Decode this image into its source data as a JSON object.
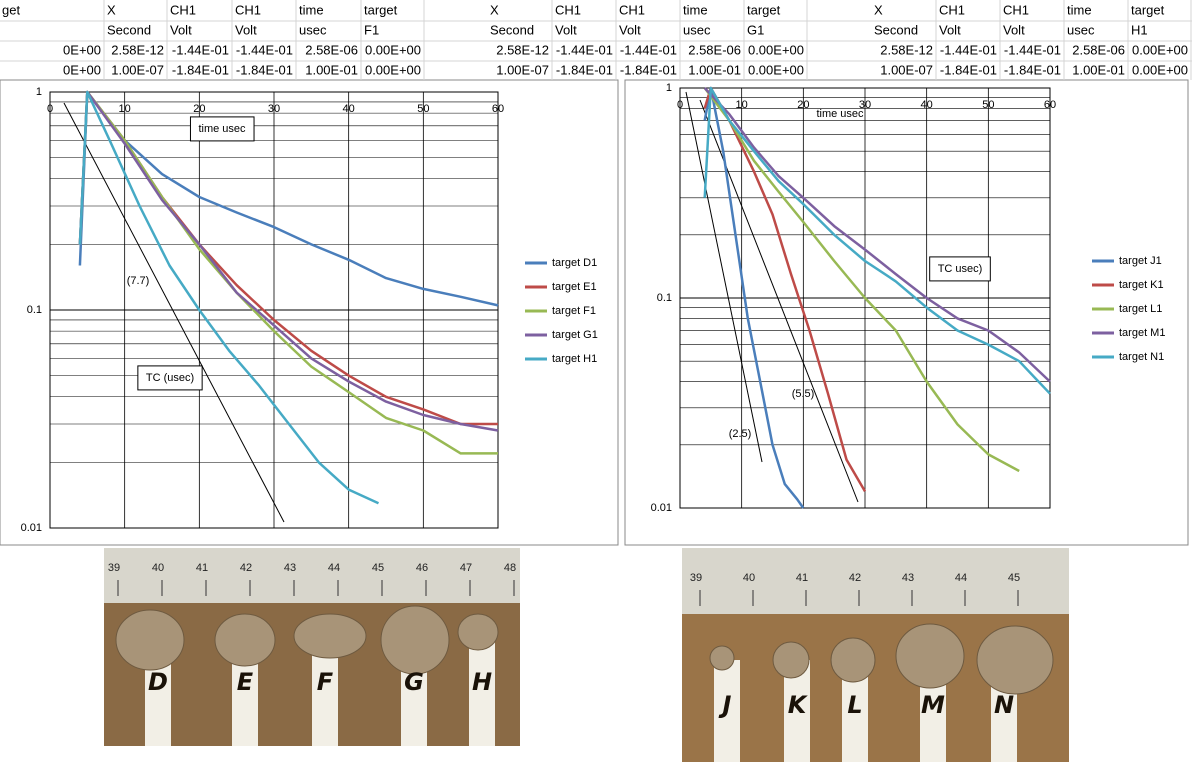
{
  "spreadsheet": {
    "rows": [
      [
        "get",
        "X",
        "CH1",
        "CH1",
        "time",
        "target",
        "X",
        "CH1",
        "CH1",
        "time",
        "target",
        "X",
        "CH1",
        "CH1",
        "time",
        "target"
      ],
      [
        null,
        "Second",
        "Volt",
        "Volt",
        "usec",
        "F1",
        "Second",
        "Volt",
        "Volt",
        "usec",
        "G1",
        "Second",
        "Volt",
        "Volt",
        "usec",
        "H1"
      ],
      [
        "0E+00",
        "2.58E-12",
        "-1.44E-01",
        "-1.44E-01",
        "2.58E-06",
        "0.00E+00",
        "2.58E-12",
        "-1.44E-01",
        "-1.44E-01",
        "2.58E-06",
        "0.00E+00",
        "2.58E-12",
        "-1.44E-01",
        "-1.44E-01",
        "2.58E-06",
        "0.00E+00"
      ],
      [
        "0E+00",
        "1.00E-07",
        "-1.84E-01",
        "-1.84E-01",
        "1.00E-01",
        "0.00E+00",
        "1.00E-07",
        "-1.84E-01",
        "-1.84E-01",
        "1.00E-01",
        "0.00E+00",
        "1.00E-07",
        "-1.84E-01",
        "-1.84E-01",
        "1.00E-01",
        "0.00E+00"
      ]
    ]
  },
  "chart_data": [
    {
      "type": "line",
      "log_y": true,
      "grid": true,
      "legend": "right",
      "annotations": [
        "time usec",
        "(7.7)",
        "TC (usec)"
      ],
      "xlim": [
        0,
        60
      ],
      "xticks": [
        0,
        10,
        20,
        30,
        40,
        50,
        60
      ],
      "ylim": [
        0.01,
        1
      ],
      "yticks": [
        0.01,
        0.1,
        1
      ],
      "y_minor_ticks": [
        0.02,
        0.03,
        0.04,
        0.05,
        0.06,
        0.07,
        0.08,
        0.09,
        0.2,
        0.3,
        0.4,
        0.5,
        0.6,
        0.7,
        0.8,
        0.9
      ],
      "series": [
        {
          "name": "target D1",
          "color": "#4a7ebb",
          "x": [
            4,
            5,
            10,
            15,
            20,
            25,
            30,
            35,
            40,
            45,
            50,
            55,
            60
          ],
          "values": [
            0.16,
            1,
            0.6,
            0.42,
            0.33,
            0.28,
            0.24,
            0.2,
            0.17,
            0.14,
            0.125,
            0.115,
            0.105
          ]
        },
        {
          "name": "target E1",
          "color": "#be4b48",
          "x": [
            4,
            5,
            10,
            15,
            20,
            25,
            30,
            35,
            40,
            45,
            50,
            55,
            60
          ],
          "values": [
            0.2,
            1,
            0.6,
            0.33,
            0.2,
            0.13,
            0.09,
            0.065,
            0.05,
            0.04,
            0.035,
            0.03,
            0.03
          ]
        },
        {
          "name": "target F1",
          "color": "#98b954",
          "x": [
            4,
            5,
            10,
            15,
            20,
            25,
            30,
            35,
            40,
            45,
            50,
            55,
            60
          ],
          "values": [
            0.2,
            1,
            0.6,
            0.33,
            0.19,
            0.12,
            0.08,
            0.055,
            0.042,
            0.032,
            0.028,
            0.022,
            0.022
          ]
        },
        {
          "name": "target G1",
          "color": "#7d60a0",
          "x": [
            4,
            5,
            10,
            15,
            20,
            25,
            30,
            35,
            40,
            45,
            50,
            55,
            60
          ],
          "values": [
            0.2,
            1,
            0.58,
            0.32,
            0.2,
            0.12,
            0.085,
            0.06,
            0.047,
            0.038,
            0.033,
            0.03,
            0.028
          ]
        },
        {
          "name": "target H1",
          "color": "#46aac5",
          "x": [
            4,
            5,
            8,
            12,
            16,
            20,
            24,
            28,
            32,
            36,
            40,
            44
          ],
          "values": [
            0.2,
            1,
            0.6,
            0.3,
            0.16,
            0.1,
            0.065,
            0.045,
            0.03,
            0.02,
            0.015,
            0.013
          ]
        }
      ]
    },
    {
      "type": "line",
      "log_y": true,
      "grid": true,
      "legend": "right",
      "annotations": [
        "time usec",
        "TC usec)",
        "(5.5)",
        "(2.5)"
      ],
      "xlim": [
        0,
        60
      ],
      "xticks": [
        0,
        10,
        20,
        30,
        40,
        50,
        60
      ],
      "ylim": [
        0.01,
        1
      ],
      "yticks": [
        0.01,
        0.1,
        1
      ],
      "y_minor_ticks": [
        0.02,
        0.03,
        0.04,
        0.05,
        0.06,
        0.07,
        0.08,
        0.09,
        0.2,
        0.3,
        0.4,
        0.5,
        0.6,
        0.7,
        0.8,
        0.9
      ],
      "series": [
        {
          "name": "target J1",
          "color": "#4a7ebb",
          "x": [
            4,
            5,
            7,
            9,
            11,
            13,
            15,
            17,
            19,
            20
          ],
          "values": [
            0.7,
            1,
            0.5,
            0.2,
            0.08,
            0.04,
            0.02,
            0.013,
            0.011,
            0.01
          ]
        },
        {
          "name": "target K1",
          "color": "#be4b48",
          "x": [
            4,
            5,
            8,
            12,
            15,
            18,
            21,
            24,
            27,
            30
          ],
          "values": [
            0.8,
            1,
            0.7,
            0.4,
            0.25,
            0.13,
            0.07,
            0.035,
            0.017,
            0.012
          ]
        },
        {
          "name": "target L1",
          "color": "#98b954",
          "x": [
            4,
            8,
            12,
            16,
            20,
            25,
            30,
            35,
            40,
            45,
            50,
            55
          ],
          "values": [
            1,
            0.7,
            0.45,
            0.32,
            0.23,
            0.15,
            0.1,
            0.07,
            0.04,
            0.025,
            0.018,
            0.015
          ]
        },
        {
          "name": "target M1",
          "color": "#7d60a0",
          "x": [
            4,
            8,
            12,
            16,
            20,
            25,
            30,
            35,
            40,
            45,
            50,
            55,
            60
          ],
          "values": [
            1,
            0.75,
            0.52,
            0.38,
            0.3,
            0.22,
            0.17,
            0.13,
            0.1,
            0.08,
            0.07,
            0.055,
            0.04
          ]
        },
        {
          "name": "target N1",
          "color": "#46aac5",
          "x": [
            4,
            5,
            8,
            12,
            16,
            20,
            25,
            30,
            35,
            40,
            45,
            50,
            55,
            60
          ],
          "values": [
            0.3,
            1,
            0.7,
            0.5,
            0.36,
            0.28,
            0.2,
            0.15,
            0.12,
            0.09,
            0.07,
            0.06,
            0.05,
            0.035
          ]
        }
      ]
    }
  ],
  "photos": [
    {
      "ruler": [
        "39",
        "40",
        "41",
        "42",
        "43",
        "44",
        "45",
        "46",
        "47",
        "48"
      ],
      "labels": [
        "D",
        "E",
        "F",
        "G",
        "H"
      ]
    },
    {
      "ruler": [
        "39",
        "40",
        "41",
        "42",
        "43",
        "44",
        "45"
      ],
      "labels": [
        "J",
        "K",
        "L",
        "M",
        "N"
      ]
    }
  ]
}
